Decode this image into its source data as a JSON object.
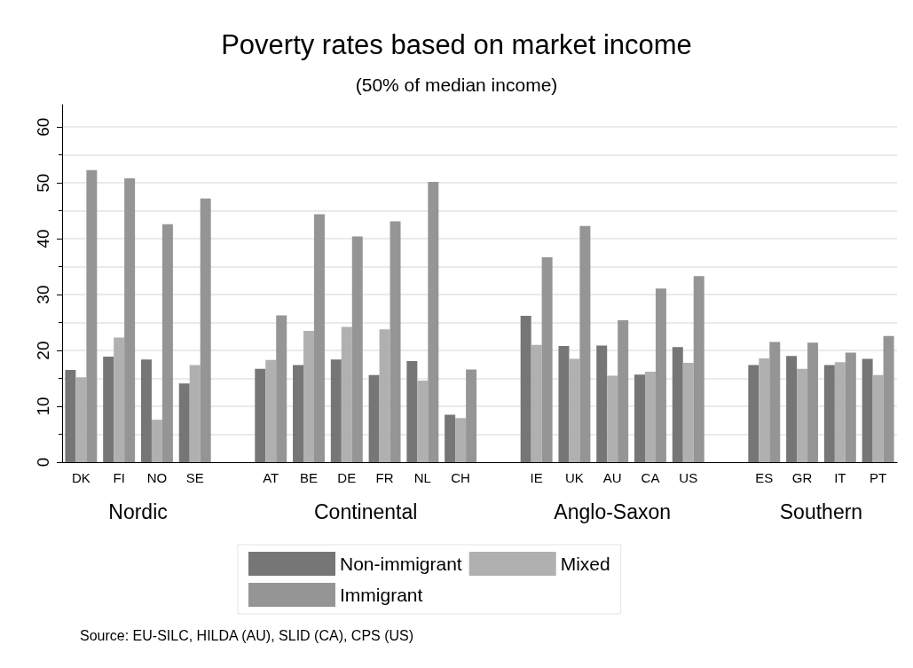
{
  "chart_data": {
    "type": "bar",
    "title": "Poverty rates based on market income",
    "subtitle": "(50% of median income)",
    "categories": [
      "DK",
      "FI",
      "NO",
      "SE",
      null,
      "AT",
      "BE",
      "DE",
      "FR",
      "NL",
      "CH",
      null,
      "IE",
      "UK",
      "AU",
      "CA",
      "US",
      null,
      "ES",
      "GR",
      "IT",
      "PT"
    ],
    "series": [
      {
        "name": "Non-immigrant",
        "color": "#767676",
        "values": [
          16.5,
          18.9,
          18.4,
          14.1,
          null,
          16.7,
          17.4,
          18.4,
          15.6,
          18.1,
          8.5,
          null,
          26.2,
          20.8,
          20.9,
          15.7,
          20.6,
          null,
          17.4,
          19.0,
          17.4,
          18.5
        ]
      },
      {
        "name": "Mixed",
        "color": "#b0b0b0",
        "values": [
          15.2,
          22.3,
          7.6,
          17.4,
          null,
          18.3,
          23.5,
          24.2,
          23.8,
          14.6,
          7.9,
          null,
          21.0,
          18.5,
          15.5,
          16.2,
          17.8,
          null,
          18.6,
          16.7,
          17.9,
          15.6
        ]
      },
      {
        "name": "Immigrant",
        "color": "#959595",
        "values": [
          52.3,
          50.8,
          42.6,
          47.2,
          null,
          26.3,
          44.4,
          40.4,
          43.1,
          50.2,
          16.6,
          null,
          36.7,
          42.3,
          25.4,
          31.1,
          33.3,
          null,
          21.5,
          21.4,
          19.6,
          22.6
        ]
      }
    ],
    "ylim": [
      0,
      64
    ],
    "yticks": [
      0,
      10,
      20,
      30,
      40,
      50,
      60
    ],
    "grid": "y",
    "legend": "bottom",
    "annotations": [
      "Nordic",
      "Continental",
      "Anglo-Saxon",
      "Southern",
      "Source: EU-SILC, HILDA (AU), SLID (CA), CPS (US)"
    ]
  }
}
